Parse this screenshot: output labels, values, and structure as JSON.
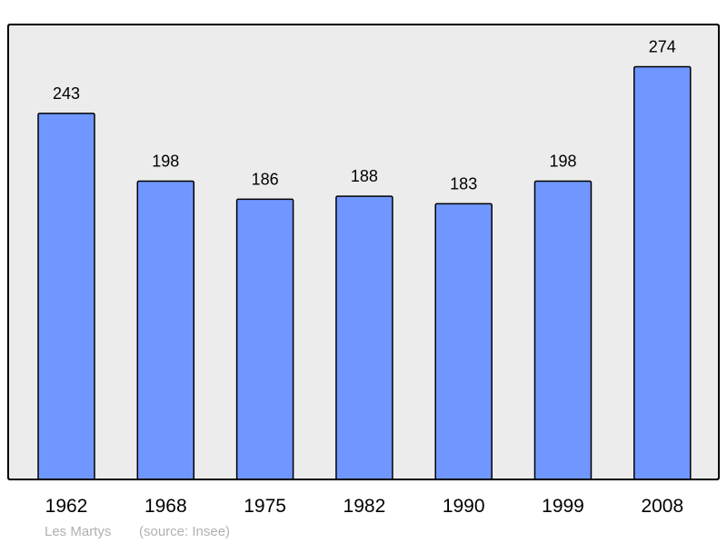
{
  "chart_data": {
    "type": "bar",
    "categories": [
      "1962",
      "1968",
      "1975",
      "1982",
      "1990",
      "1999",
      "2008"
    ],
    "values": [
      243,
      198,
      186,
      188,
      183,
      198,
      274
    ],
    "title": "",
    "xlabel": "",
    "ylabel": "",
    "ylim": [
      0,
      302
    ],
    "grid": false,
    "data_labels": true,
    "colors": {
      "bar": "#7097ff",
      "plot_background": "#ececec",
      "frame": "#000000"
    }
  },
  "footer": {
    "place": "Les Martys",
    "source": "(source: Insee)"
  }
}
